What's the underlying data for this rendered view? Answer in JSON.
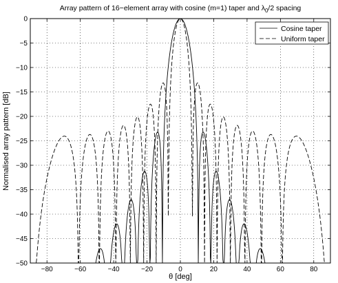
{
  "chart_data": {
    "type": "line",
    "title": {
      "main": "Array pattern of 16−element array with cosine (m=1) taper and λ",
      "subscript": "0",
      "suffix": "/2 spacing"
    },
    "xlabel": "θ [deg]",
    "ylabel": "Normalised array pattern [dB]",
    "xlim": [
      -90,
      90
    ],
    "ylim": [
      -50,
      0
    ],
    "xticks": [
      -80,
      -60,
      -40,
      -20,
      0,
      20,
      40,
      60,
      80
    ],
    "yticks": [
      0,
      -5,
      -10,
      -15,
      -20,
      -25,
      -30,
      -35,
      -40,
      -45,
      -50
    ],
    "grid": true,
    "legend_position": "top-right",
    "series": [
      {
        "name": "Cosine taper",
        "line_style": "solid",
        "color": "#000000",
        "array_elements": 16,
        "taper": "cosine",
        "element_spacing_wavelengths": 0.5,
        "x_step_deg": 0.25,
        "floor_db": -50
      },
      {
        "name": "Uniform taper",
        "line_style": "dashed",
        "color": "#000000",
        "array_elements": 16,
        "taper": "uniform",
        "element_spacing_wavelengths": 0.5,
        "x_step_deg": 0.25,
        "floor_db": -50
      }
    ]
  }
}
